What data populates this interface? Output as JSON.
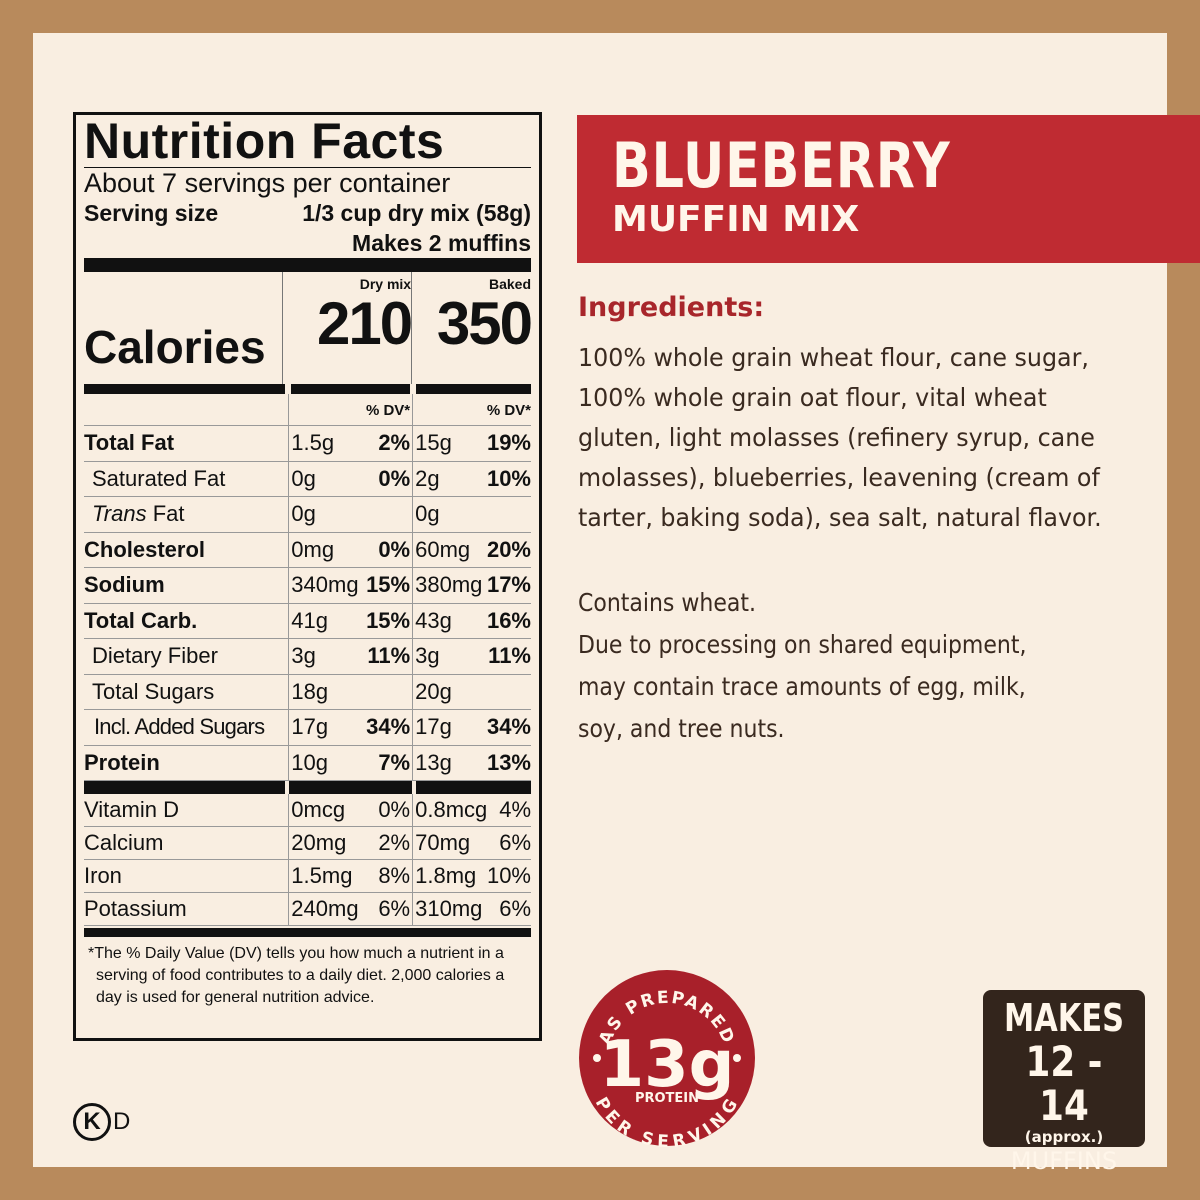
{
  "nutrition": {
    "title": "Nutrition Facts",
    "servings": "About 7 servings per container",
    "serving_size_label": "Serving size",
    "serving_size_value": "1/3 cup dry mix (58g)",
    "makes": "Makes 2 muffins",
    "col_dry": "Dry mix",
    "col_baked": "Baked",
    "calories_label": "Calories",
    "calories_dry": "210",
    "calories_baked": "350",
    "dv_label": "% DV*",
    "rows": [
      {
        "name": "Total Fat",
        "bold": true,
        "indent": 0,
        "dry": "1.5g",
        "dry_dv": "2%",
        "baked": "15g",
        "baked_dv": "19%"
      },
      {
        "name": "Saturated Fat",
        "bold": false,
        "indent": 1,
        "dry": "0g",
        "dry_dv": "0%",
        "baked": "2g",
        "baked_dv": "10%"
      },
      {
        "name": "Trans Fat",
        "bold": false,
        "indent": 1,
        "dry": "0g",
        "dry_dv": "",
        "baked": "0g",
        "baked_dv": ""
      },
      {
        "name": "Cholesterol",
        "bold": true,
        "indent": 0,
        "dry": "0mg",
        "dry_dv": "0%",
        "baked": "60mg",
        "baked_dv": "20%"
      },
      {
        "name": "Sodium",
        "bold": true,
        "indent": 0,
        "dry": "340mg",
        "dry_dv": "15%",
        "baked": "380mg",
        "baked_dv": "17%"
      },
      {
        "name": "Total Carb.",
        "bold": true,
        "indent": 0,
        "dry": "41g",
        "dry_dv": "15%",
        "baked": "43g",
        "baked_dv": "16%"
      },
      {
        "name": "Dietary Fiber",
        "bold": false,
        "indent": 1,
        "dry": "3g",
        "dry_dv": "11%",
        "baked": "3g",
        "baked_dv": "11%"
      },
      {
        "name": "Total Sugars",
        "bold": false,
        "indent": 1,
        "dry": "18g",
        "dry_dv": "",
        "baked": "20g",
        "baked_dv": ""
      },
      {
        "name": "Incl. Added Sugars",
        "bold": false,
        "indent": 2,
        "dry": "17g",
        "dry_dv": "34%",
        "baked": "17g",
        "baked_dv": "34%"
      },
      {
        "name": "Protein",
        "bold": true,
        "indent": 0,
        "dry": "10g",
        "dry_dv": "7%",
        "baked": "13g",
        "baked_dv": "13%"
      }
    ],
    "vitamins": [
      {
        "name": "Vitamin D",
        "dry": "0mcg",
        "dry_dv": "0%",
        "baked": "0.8mcg",
        "baked_dv": "4%"
      },
      {
        "name": "Calcium",
        "dry": "20mg",
        "dry_dv": "2%",
        "baked": "70mg",
        "baked_dv": "6%"
      },
      {
        "name": "Iron",
        "dry": "1.5mg",
        "dry_dv": "8%",
        "baked": "1.8mg",
        "baked_dv": "10%"
      },
      {
        "name": "Potassium",
        "dry": "240mg",
        "dry_dv": "6%",
        "baked": "310mg",
        "baked_dv": "6%"
      }
    ],
    "footnote": "*The % Daily Value (DV) tells you how much a nutrient in a serving of food contributes to a daily diet. 2,000 calories a day is used for general nutrition advice."
  },
  "product": {
    "name": "BLUEBERRY",
    "subtitle": "MUFFIN MIX",
    "accent": "#bf2b32"
  },
  "ingredients": {
    "heading": "Ingredients:",
    "text": "100% whole grain wheat flour, cane sugar, 100% whole grain oat flour, vital wheat gluten, light molasses (refinery syrup, cane molasses), blueberries, leavening (cream of tarter, baking soda), sea salt, natural flavor."
  },
  "allergens": {
    "line1": "Contains wheat.",
    "line2": "Due to processing on shared equipment, may contain trace amounts of egg, milk, soy, and tree nuts."
  },
  "seal": {
    "top": "AS PREPARED",
    "amount": "13g",
    "label": "PROTEIN",
    "bottom": "PER SERVING"
  },
  "makes": {
    "label": "MAKES",
    "range": "12 - 14",
    "approx": "(approx.)",
    "unit": "MUFFINS"
  },
  "kosher": {
    "symbol": "K",
    "suffix": "D"
  }
}
